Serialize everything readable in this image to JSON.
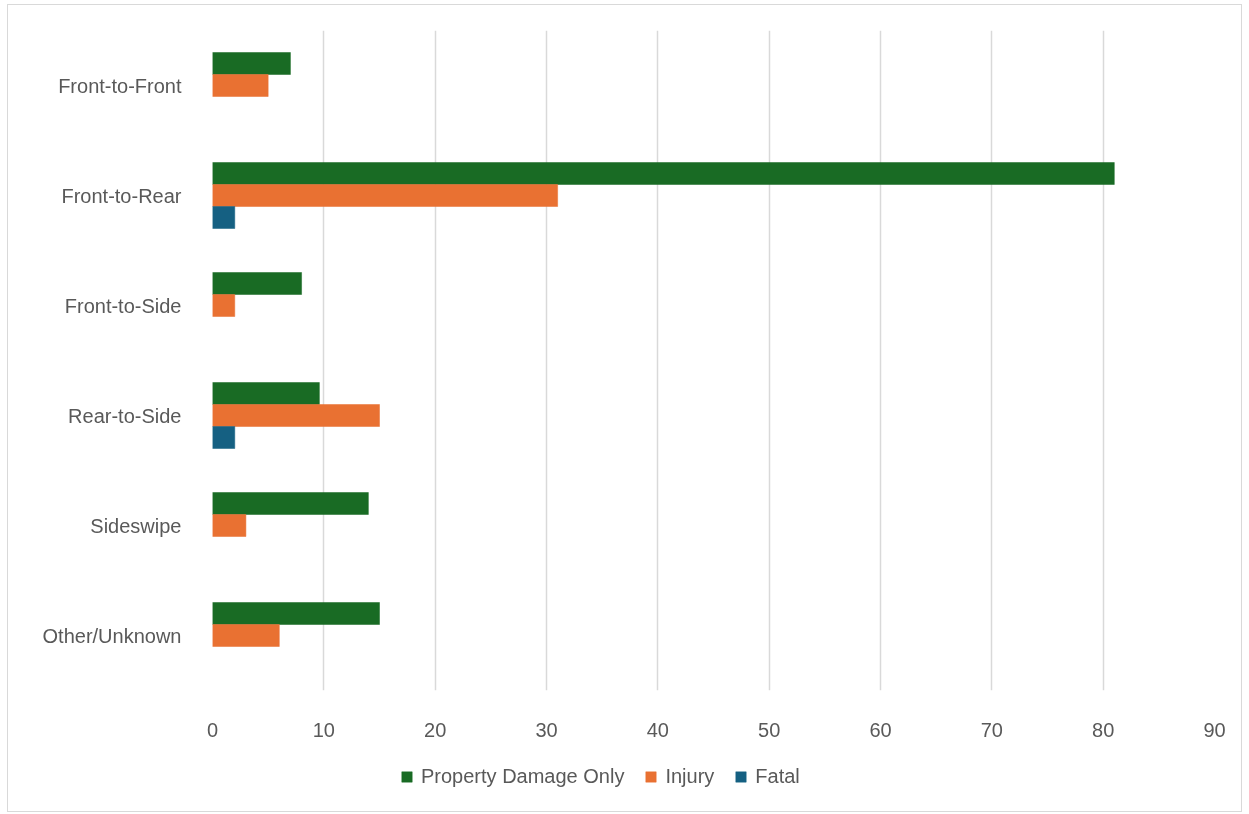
{
  "chart_data": {
    "type": "bar",
    "orientation": "horizontal",
    "categories": [
      "Front-to-Front",
      "Front-to-Rear",
      "Front-to-Side",
      "Rear-to-Side",
      "Sideswipe",
      "Other/Unknown"
    ],
    "series": [
      {
        "name": "Property Damage Only",
        "color": "#196b24",
        "values": [
          7,
          81,
          8,
          9.6,
          14,
          15
        ]
      },
      {
        "name": "Injury",
        "color": "#e97132",
        "values": [
          5,
          31,
          2,
          15,
          3,
          6
        ]
      },
      {
        "name": "Fatal",
        "color": "#156082",
        "values": [
          null,
          2,
          null,
          2,
          null,
          null
        ]
      }
    ],
    "xlim": [
      0,
      90
    ],
    "xticks": [
      0,
      10,
      20,
      30,
      40,
      50,
      60,
      70,
      80,
      90
    ],
    "grid": "x",
    "legend": "bottom"
  }
}
